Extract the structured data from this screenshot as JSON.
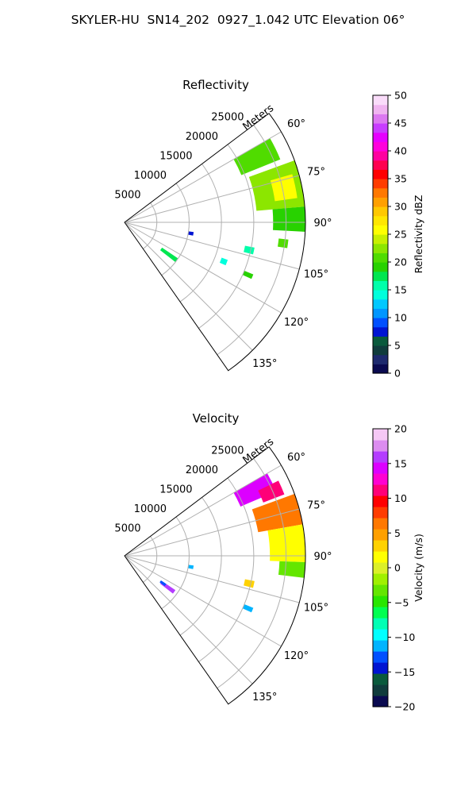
{
  "figure_title": "SKYLER-HU  SN14_202  0927_1.042 UTC Elevation 06°",
  "chart_data": [
    {
      "type": "polar-sector",
      "title": "Reflectivity",
      "range_axis_label": "Meters",
      "range_ticks": [
        5000,
        10000,
        15000,
        20000,
        25000
      ],
      "range_tick_labels": [
        "5000",
        "10000",
        "15000",
        "20000",
        "25000"
      ],
      "range_max": 28000,
      "azimuth_range_deg": [
        53,
        145
      ],
      "azimuth_ticks_deg": [
        60,
        75,
        90,
        105,
        120,
        135
      ],
      "azimuth_tick_labels": [
        "60°",
        "75°",
        "90°",
        "105°",
        "120°",
        "135°"
      ],
      "grid": true,
      "colorbar": {
        "label": "Reflectivity dBZ",
        "min": 0,
        "max": 50,
        "ticks": [
          0,
          5,
          10,
          15,
          20,
          25,
          30,
          35,
          40,
          45,
          50
        ],
        "tick_labels": [
          "0",
          "5",
          "10",
          "15",
          "20",
          "25",
          "30",
          "35",
          "40",
          "45",
          "50"
        ]
      },
      "echoes": [
        {
          "azimuth_deg": [
            60,
            68
          ],
          "range_m": [
            19500,
            26000
          ],
          "value": 20
        },
        {
          "azimuth_deg": [
            70,
            85
          ],
          "range_m": [
            20500,
            28000
          ],
          "value": 22
        },
        {
          "azimuth_deg": [
            74,
            82
          ],
          "range_m": [
            23500,
            27000
          ],
          "value": 26
        },
        {
          "azimuth_deg": [
            85,
            93
          ],
          "range_m": [
            23000,
            28000
          ],
          "value": 19
        },
        {
          "azimuth_deg": [
            124,
            128
          ],
          "range_m": [
            7000,
            10000
          ],
          "value": 17
        },
        {
          "azimuth_deg": [
            112,
            114
          ],
          "range_m": [
            20000,
            21500
          ],
          "value": 19
        },
        {
          "azimuth_deg": [
            101,
            104
          ],
          "range_m": [
            19000,
            20500
          ],
          "value": 15
        },
        {
          "azimuth_deg": [
            96,
            99
          ],
          "range_m": [
            24000,
            25500
          ],
          "value": 21
        },
        {
          "azimuth_deg": [
            98,
            101
          ],
          "range_m": [
            10000,
            10800
          ],
          "value": 8
        },
        {
          "azimuth_deg": [
            110,
            113
          ],
          "range_m": [
            16000,
            17000
          ],
          "value": 14
        }
      ]
    },
    {
      "type": "polar-sector",
      "title": "Velocity",
      "range_axis_label": "Meters",
      "range_ticks": [
        5000,
        10000,
        15000,
        20000,
        25000
      ],
      "range_tick_labels": [
        "5000",
        "10000",
        "15000",
        "20000",
        "25000"
      ],
      "range_max": 28000,
      "azimuth_range_deg": [
        53,
        145
      ],
      "azimuth_ticks_deg": [
        60,
        75,
        90,
        105,
        120,
        135
      ],
      "azimuth_tick_labels": [
        "60°",
        "75°",
        "90°",
        "105°",
        "120°",
        "135°"
      ],
      "grid": true,
      "colorbar": {
        "label": "Velocity (m/s)",
        "min": -20,
        "max": 20,
        "ticks": [
          -20,
          -15,
          -10,
          -5,
          0,
          5,
          10,
          15,
          20
        ],
        "tick_labels": [
          "−20",
          "−15",
          "−10",
          "−5",
          "0",
          "5",
          "10",
          "15",
          "20"
        ]
      },
      "echoes": [
        {
          "azimuth_deg": [
            60,
            67
          ],
          "range_m": [
            19500,
            25500
          ],
          "value": 15
        },
        {
          "azimuth_deg": [
            64,
            69
          ],
          "range_m": [
            23000,
            26500
          ],
          "value": 11
        },
        {
          "azimuth_deg": [
            70,
            80
          ],
          "range_m": [
            21000,
            28000
          ],
          "value": 7
        },
        {
          "azimuth_deg": [
            80,
            92
          ],
          "range_m": [
            22500,
            28000
          ],
          "value": 2
        },
        {
          "azimuth_deg": [
            92,
            97
          ],
          "range_m": [
            24000,
            28000
          ],
          "value": -3
        },
        {
          "azimuth_deg": [
            124,
            128
          ],
          "range_m": [
            7000,
            9500
          ],
          "value": 16
        },
        {
          "azimuth_deg": [
            124,
            127
          ],
          "range_m": [
            6800,
            7800
          ],
          "value": -13
        },
        {
          "azimuth_deg": [
            112,
            114
          ],
          "range_m": [
            20000,
            21500
          ],
          "value": -11
        },
        {
          "azimuth_deg": [
            101,
            104
          ],
          "range_m": [
            19000,
            20500
          ],
          "value": 3
        },
        {
          "azimuth_deg": [
            98,
            101
          ],
          "range_m": [
            10000,
            10800
          ],
          "value": -12
        }
      ]
    }
  ],
  "colormaps": {
    "reflectivity": [
      "#0a0a50",
      "#1e2a6e",
      "#103c3c",
      "#0a5a3c",
      "#0014d2",
      "#0050ff",
      "#0096ff",
      "#00c8ff",
      "#00ffdc",
      "#00ffaa",
      "#00e650",
      "#28d200",
      "#50dc00",
      "#8ce600",
      "#c8f000",
      "#ffff00",
      "#ffe600",
      "#ffc800",
      "#ffa000",
      "#ff7800",
      "#ff3c00",
      "#ff0000",
      "#ff0050",
      "#ff00a0",
      "#ff00dc",
      "#e600ff",
      "#c83cff",
      "#dc78f0",
      "#f0b4f0",
      "#fadcfa"
    ],
    "velocity": [
      "#0a0a50",
      "#103c3c",
      "#0a5a3c",
      "#0014d2",
      "#0050ff",
      "#00b4ff",
      "#00ffff",
      "#00ffb4",
      "#00ff50",
      "#28e600",
      "#64e600",
      "#a0f000",
      "#dcf028",
      "#ffff00",
      "#ffd200",
      "#ffa000",
      "#ff7800",
      "#ff3c00",
      "#ff0000",
      "#ff0078",
      "#ff00d2",
      "#dc00ff",
      "#b43cff",
      "#dc8cf0",
      "#f5c8f5"
    ]
  }
}
